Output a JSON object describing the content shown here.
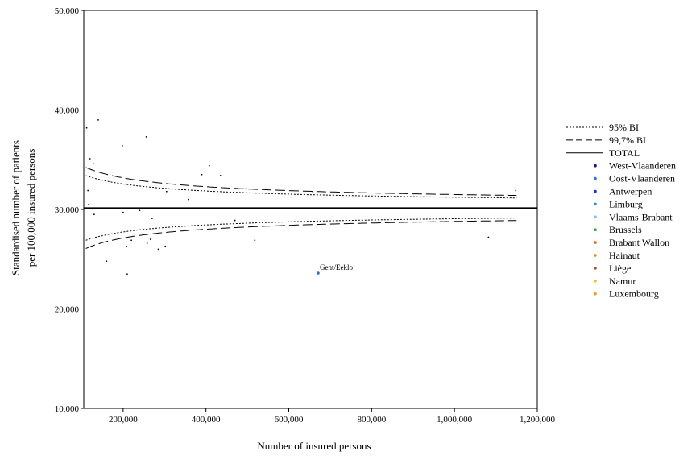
{
  "chart_data": {
    "type": "scatter",
    "xlabel": "Number of insured persons",
    "ylabel_lines": [
      "Standardised number of patients",
      "per 100,000 insured persons"
    ],
    "xlim": [
      105000,
      1200000
    ],
    "ylim": [
      10000,
      50000
    ],
    "x_ticks": [
      200000,
      400000,
      600000,
      800000,
      1000000,
      1200000
    ],
    "x_tick_labels": [
      "200,000",
      "400,000",
      "600,000",
      "800,000",
      "1,000,000",
      "1,200,000"
    ],
    "y_ticks": [
      10000,
      20000,
      30000,
      40000,
      50000
    ],
    "y_tick_labels": [
      "10,000",
      "20,000",
      "30,000",
      "40,000",
      "50,000"
    ],
    "grid": false,
    "legend_position": "right",
    "total_value": 30150,
    "lines": [
      {
        "name": "95% BI",
        "style": "dotted",
        "upper_a": 116400000,
        "lower_a": 116400000
      },
      {
        "name": "99,7% BI",
        "style": "dashed",
        "upper_a": 182700000,
        "lower_a": 182700000
      }
    ],
    "total_label": "TOTAL",
    "regions": [
      {
        "name": "West-Vlaanderen",
        "color": "#1a1a8c"
      },
      {
        "name": "Oost-Vlaanderen",
        "color": "#3a6fd6"
      },
      {
        "name": "Antwerpen",
        "color": "#1f2fd0"
      },
      {
        "name": "Limburg",
        "color": "#2c8fe6"
      },
      {
        "name": "Vlaams-Brabant",
        "color": "#7fbff0"
      },
      {
        "name": "Brussels",
        "color": "#2eaa3a"
      },
      {
        "name": "Brabant Wallon",
        "color": "#e06a1c"
      },
      {
        "name": "Hainaut",
        "color": "#ef8a22"
      },
      {
        "name": "Liège",
        "color": "#b0553a"
      },
      {
        "name": "Namur",
        "color": "#f2c21a"
      },
      {
        "name": "Luxembourg",
        "color": "#f29a1a"
      }
    ],
    "points": [
      {
        "x": 112000,
        "y": 38200
      },
      {
        "x": 115000,
        "y": 31900
      },
      {
        "x": 117000,
        "y": 30500
      },
      {
        "x": 120000,
        "y": 35100
      },
      {
        "x": 128000,
        "y": 34600
      },
      {
        "x": 130000,
        "y": 29500
      },
      {
        "x": 140000,
        "y": 39000
      },
      {
        "x": 160000,
        "y": 24800
      },
      {
        "x": 198000,
        "y": 36400
      },
      {
        "x": 200000,
        "y": 29700
      },
      {
        "x": 208000,
        "y": 26300
      },
      {
        "x": 210000,
        "y": 23500
      },
      {
        "x": 220000,
        "y": 26900
      },
      {
        "x": 240000,
        "y": 29900
      },
      {
        "x": 256000,
        "y": 37300
      },
      {
        "x": 258000,
        "y": 26600
      },
      {
        "x": 266000,
        "y": 27000
      },
      {
        "x": 270000,
        "y": 29100
      },
      {
        "x": 285000,
        "y": 26000
      },
      {
        "x": 302000,
        "y": 26300
      },
      {
        "x": 305000,
        "y": 31800
      },
      {
        "x": 358000,
        "y": 31000
      },
      {
        "x": 390000,
        "y": 33500
      },
      {
        "x": 408000,
        "y": 34400
      },
      {
        "x": 435000,
        "y": 33400
      },
      {
        "x": 470000,
        "y": 28900
      },
      {
        "x": 497000,
        "y": 32100
      },
      {
        "x": 518000,
        "y": 26900
      },
      {
        "x": 658000,
        "y": 31700
      },
      {
        "x": 1082000,
        "y": 27200
      },
      {
        "x": 1148000,
        "y": 31900
      },
      {
        "x": 671000,
        "y": 23600,
        "label": "Gent/Eeklo",
        "region": "Oost-Vlaanderen"
      }
    ]
  }
}
